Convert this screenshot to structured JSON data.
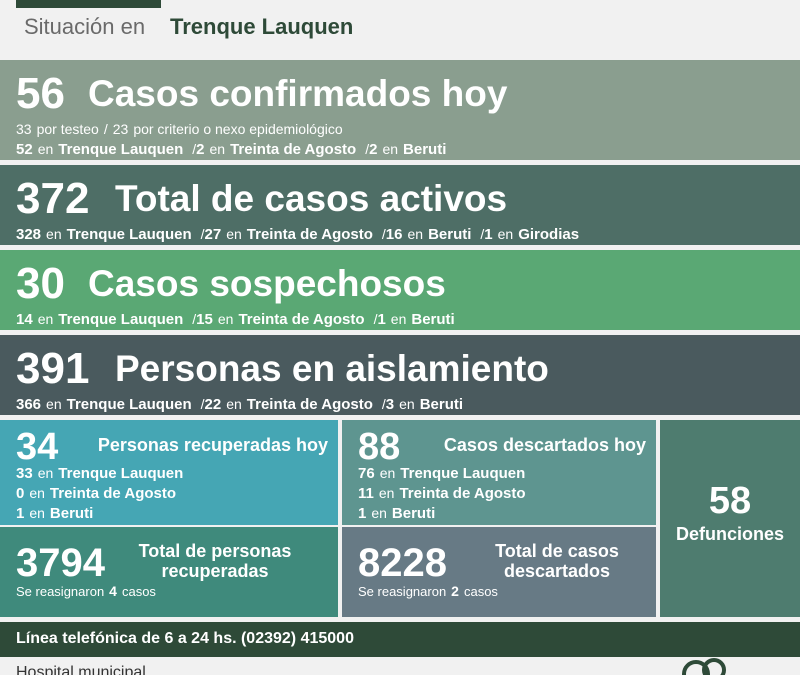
{
  "header": {
    "label": "Situación en",
    "place": "Trenque Lauquen"
  },
  "rows": [
    {
      "count": 56,
      "title": "Casos confirmados hoy",
      "lines": [
        [
          {
            "text": "33"
          },
          {
            "text": "por testeo"
          },
          {
            "text": "/"
          },
          {
            "text": "23"
          },
          {
            "text": "por criterio o nexo epidemiológico"
          }
        ],
        [
          {
            "text": "52",
            "bold": true
          },
          {
            "text": "en"
          },
          {
            "text": "Trenque Lauquen",
            "bold": true
          },
          {
            "text": "/"
          },
          {
            "text": "2",
            "bold": true
          },
          {
            "text": "en"
          },
          {
            "text": "Treinta de Agosto",
            "bold": true
          },
          {
            "text": "/"
          },
          {
            "text": "2",
            "bold": true
          },
          {
            "text": "en"
          },
          {
            "text": "Beruti",
            "bold": true
          }
        ]
      ]
    },
    {
      "count": 372,
      "title": "Total de casos activos",
      "lines": [
        [
          {
            "text": "328",
            "bold": true
          },
          {
            "text": "en"
          },
          {
            "text": "Trenque Lauquen",
            "bold": true
          },
          {
            "text": "/"
          },
          {
            "text": "27",
            "bold": true
          },
          {
            "text": "en"
          },
          {
            "text": "Treinta de Agosto",
            "bold": true
          },
          {
            "text": "/"
          },
          {
            "text": "16",
            "bold": true
          },
          {
            "text": "en"
          },
          {
            "text": "Beruti",
            "bold": true
          },
          {
            "text": "/"
          },
          {
            "text": "1",
            "bold": true
          },
          {
            "text": "en"
          },
          {
            "text": "Girodias",
            "bold": true
          }
        ]
      ]
    },
    {
      "count": 30,
      "title": "Casos sospechosos",
      "lines": [
        [
          {
            "text": "14",
            "bold": true
          },
          {
            "text": "en"
          },
          {
            "text": "Trenque Lauquen",
            "bold": true
          },
          {
            "text": "/"
          },
          {
            "text": "15",
            "bold": true
          },
          {
            "text": "en"
          },
          {
            "text": "Treinta de Agosto",
            "bold": true
          },
          {
            "text": "/"
          },
          {
            "text": "1",
            "bold": true
          },
          {
            "text": "en"
          },
          {
            "text": "Beruti",
            "bold": true
          }
        ]
      ]
    },
    {
      "count": 391,
      "title": "Personas en aislamiento",
      "lines": [
        [
          {
            "text": "366",
            "bold": true
          },
          {
            "text": "en"
          },
          {
            "text": "Trenque Lauquen",
            "bold": true
          },
          {
            "text": "/"
          },
          {
            "text": "22",
            "bold": true
          },
          {
            "text": "en"
          },
          {
            "text": "Treinta de Agosto",
            "bold": true
          },
          {
            "text": "/"
          },
          {
            "text": "3",
            "bold": true
          },
          {
            "text": "en"
          },
          {
            "text": "Beruti",
            "bold": true
          }
        ]
      ]
    }
  ],
  "cards": [
    {
      "count": 34,
      "title": "Personas recuperadas hoy",
      "lines": [
        [
          {
            "text": "33",
            "bold": true
          },
          {
            "text": "en"
          },
          {
            "text": "Trenque Lauquen",
            "bold": true
          }
        ],
        [
          {
            "text": "0",
            "bold": true
          },
          {
            "text": "en"
          },
          {
            "text": "Treinta de Agosto",
            "bold": true
          }
        ],
        [
          {
            "text": "1",
            "bold": true
          },
          {
            "text": "en"
          },
          {
            "text": "Beruti",
            "bold": true
          }
        ]
      ]
    },
    {
      "count": 88,
      "title": "Casos descartados hoy",
      "lines": [
        [
          {
            "text": "76",
            "bold": true
          },
          {
            "text": "en"
          },
          {
            "text": "Trenque Lauquen",
            "bold": true
          }
        ],
        [
          {
            "text": "11",
            "bold": true
          },
          {
            "text": "en"
          },
          {
            "text": "Treinta de Agosto",
            "bold": true
          }
        ],
        [
          {
            "text": "1",
            "bold": true
          },
          {
            "text": "en"
          },
          {
            "text": "Beruti",
            "bold": true
          }
        ]
      ]
    },
    {
      "count": 3794,
      "title": "Total de personas recuperadas",
      "lines": [
        [
          {
            "text": "Se reasignaron"
          },
          {
            "text": "4",
            "bold": true
          },
          {
            "text": "casos"
          }
        ]
      ]
    },
    {
      "count": 8228,
      "title": "Total de casos descartados",
      "lines": [
        [
          {
            "text": "Se reasignaron"
          },
          {
            "text": "2",
            "bold": true
          },
          {
            "text": "casos"
          }
        ]
      ]
    }
  ],
  "deaths": {
    "count": 58,
    "label": "Defunciones"
  },
  "footer": {
    "phone": "Línea telefónica de 6 a 24 hs. (02392) 415000",
    "hospital": "Hospital municipal"
  }
}
